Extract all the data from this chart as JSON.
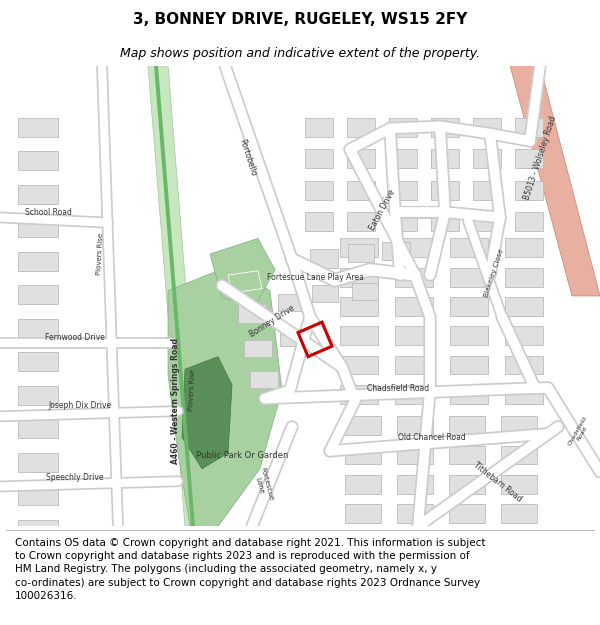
{
  "title": "3, BONNEY DRIVE, RUGELEY, WS15 2FY",
  "subtitle": "Map shows position and indicative extent of the property.",
  "footer": "Contains OS data © Crown copyright and database right 2021. This information is subject\nto Crown copyright and database rights 2023 and is reproduced with the permission of\nHM Land Registry. The polygons (including the associated geometry, namely x, y\nco-ordinates) are subject to Crown copyright and database rights 2023 Ordnance Survey\n100026316.",
  "map_bg": "#f0f0f0",
  "road_color": "#ffffff",
  "road_outline": "#cccccc",
  "building_fill": "#e0e0e0",
  "building_outline": "#bbbbbb",
  "green_light": "#c8e6c0",
  "green_mid": "#a8d0a0",
  "green_dark": "#5a8f5a",
  "red_road_fill": "#e8b0a0",
  "red_road_edge": "#cc8070",
  "plot_color": "#cc0000",
  "title_fontsize": 11,
  "subtitle_fontsize": 9,
  "footer_fontsize": 7.5,
  "label_color": "#333333",
  "road_label_size": 5.5
}
